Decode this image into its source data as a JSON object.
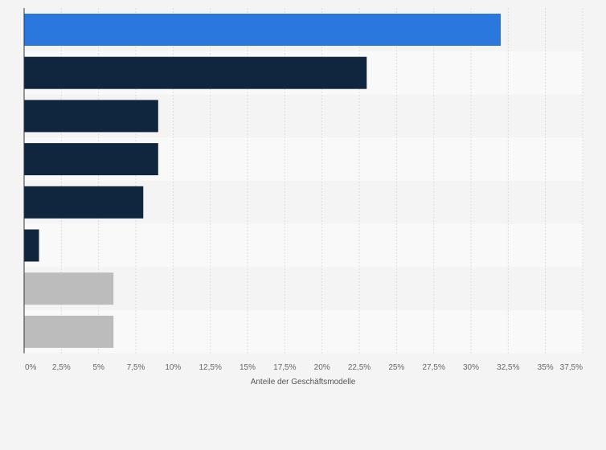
{
  "chart_data": {
    "type": "bar",
    "orientation": "horizontal",
    "title": "",
    "xlabel": "Anteile der Geschäftsmodelle",
    "ylabel": "",
    "categories": [
      "",
      "",
      "",
      "",
      "",
      "",
      "",
      ""
    ],
    "values": [
      32,
      23,
      9,
      9,
      8,
      1,
      6,
      6
    ],
    "xlim": [
      0,
      37.5
    ],
    "ticks": [
      0,
      2.5,
      5,
      7.5,
      10,
      12.5,
      15,
      17.5,
      20,
      22.5,
      25,
      27.5,
      30,
      32.5,
      35,
      37.5
    ],
    "tick_labels": [
      "0%",
      "2,5%",
      "5%",
      "7,5%",
      "10%",
      "12,5%",
      "15%",
      "17,5%",
      "20%",
      "22,5%",
      "25%",
      "27,5%",
      "30%",
      "32,5%",
      "35%",
      "37,5%"
    ],
    "grid": true,
    "legend": "none",
    "bar_colors": [
      "#2a77de",
      "#10263e",
      "#10263e",
      "#10263e",
      "#10263e",
      "#10263e",
      "#bcbcbc",
      "#bcbcbc"
    ]
  },
  "colors": {
    "background": "#f4f4f4",
    "band_light": "#f9f9f9",
    "band_dark": "#f4f4f4",
    "grid": "#dddddd",
    "axis": "#333333"
  }
}
